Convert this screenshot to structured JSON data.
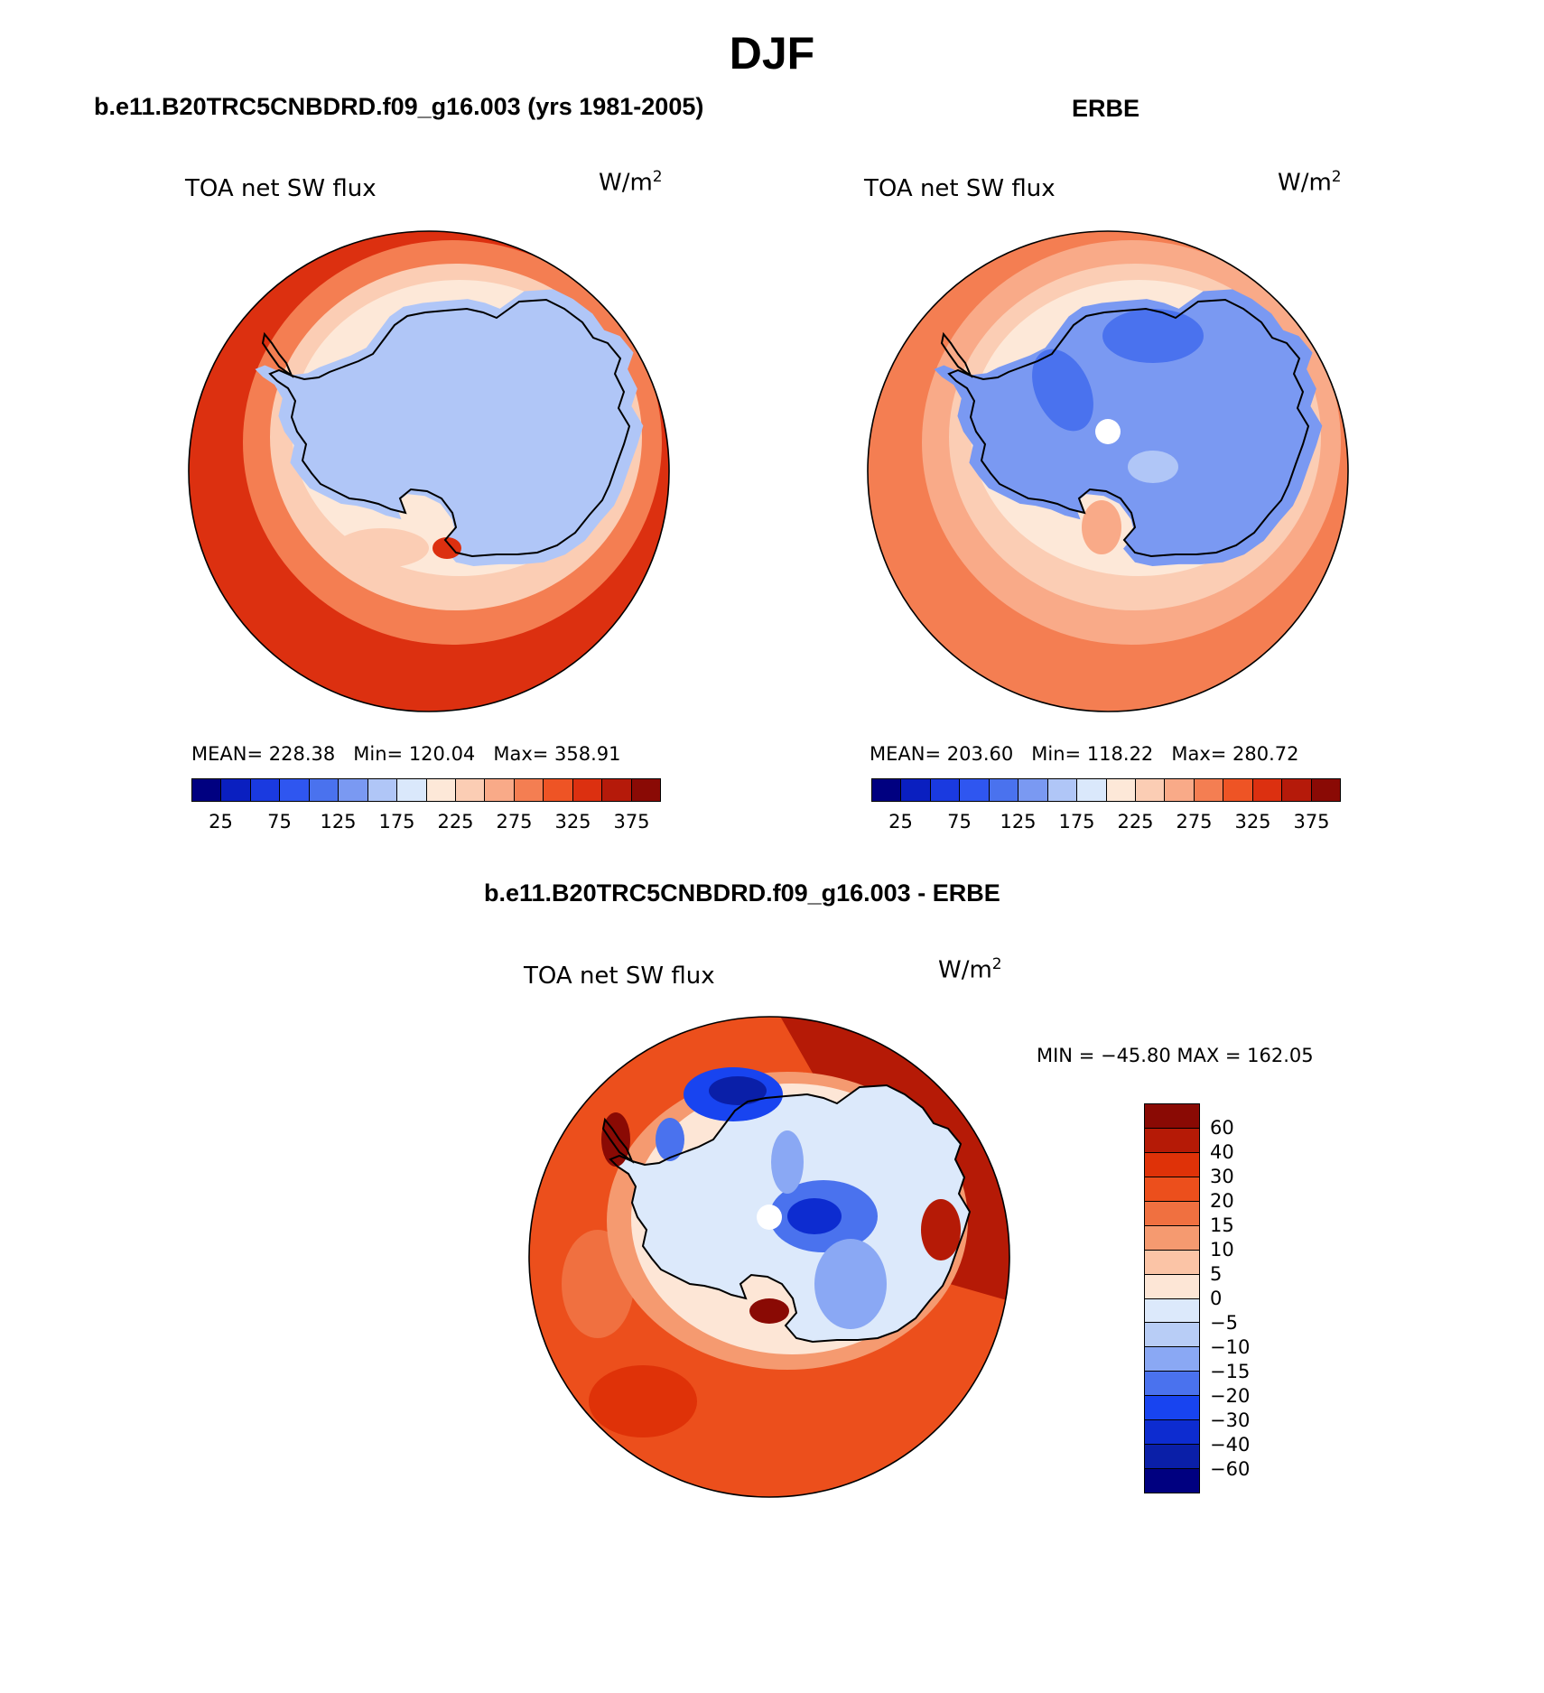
{
  "figure": {
    "title": "DJF",
    "colors": {
      "abs_scale": [
        "#000080",
        "#0a1fc0",
        "#1a3ae0",
        "#2f56f0",
        "#4a72ee",
        "#7a99f2",
        "#b0c6f7",
        "#dae8fb",
        "#fde8d8",
        "#fbcdb4",
        "#f9aa88",
        "#f47e52",
        "#ee5425",
        "#dc3010",
        "#b51a0a",
        "#8a0a05"
      ],
      "diff_scale": [
        "#000080",
        "#0a1fa8",
        "#0d2cd0",
        "#1844f0",
        "#4a72ee",
        "#8aa8f4",
        "#b8cdf6",
        "#dce9fb",
        "#fde6d6",
        "#fbc4a6",
        "#f59a70",
        "#f07040",
        "#ec4f1c",
        "#df3208",
        "#b51a06",
        "#8a0a04"
      ],
      "coast": "#000000",
      "missing": "#ffffff"
    }
  },
  "panels": [
    {
      "title": "b.e11.B20TRC5CNBDRD.f09_g16.003 (yrs 1981-2005)",
      "variable": "TOA net SW flux",
      "units_base": "W/m",
      "units_exp": "2",
      "stats": {
        "mean_label": "MEAN=",
        "mean": "228.38",
        "min_label": "Min=",
        "min": "120.04",
        "max_label": "Max=",
        "max": "358.91"
      },
      "colorbar_ticks": [
        "25",
        "75",
        "125",
        "175",
        "225",
        "275",
        "325",
        "375"
      ],
      "map_levels": {
        "ocean_outer": 325,
        "ocean_mid": 275,
        "ocean_inner": 225,
        "continent": 150
      }
    },
    {
      "title": "ERBE",
      "variable": "TOA net SW flux",
      "units_base": "W/m",
      "units_exp": "2",
      "stats": {
        "mean_label": "MEAN=",
        "mean": "203.60",
        "min_label": "Min=",
        "min": "118.22",
        "max_label": "Max=",
        "max": "280.72"
      },
      "colorbar_ticks": [
        "25",
        "75",
        "125",
        "175",
        "225",
        "275",
        "325",
        "375"
      ],
      "map_levels": {
        "ocean_outer": 275,
        "ocean_mid": 250,
        "ocean_inner": 225,
        "continent": 140
      }
    }
  ],
  "diff_panel": {
    "title": "b.e11.B20TRC5CNBDRD.f09_g16.003 - ERBE",
    "variable": "TOA net SW flux",
    "units_base": "W/m",
    "units_exp": "2",
    "minmax": "MIN = −45.80 MAX = 162.05",
    "colorbar_ticks": [
      "60",
      "40",
      "30",
      "20",
      "15",
      "10",
      "5",
      "0",
      "−5",
      "−10",
      "−15",
      "−20",
      "−30",
      "−40",
      "−60"
    ]
  }
}
